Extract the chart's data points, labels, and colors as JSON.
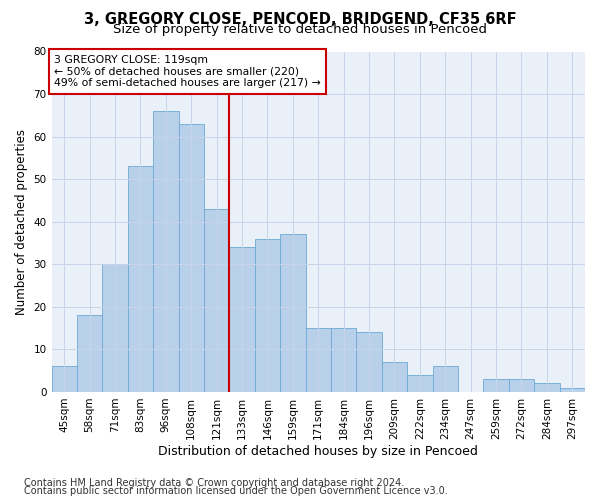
{
  "title_line1": "3, GREGORY CLOSE, PENCOED, BRIDGEND, CF35 6RF",
  "title_line2": "Size of property relative to detached houses in Pencoed",
  "xlabel": "Distribution of detached houses by size in Pencoed",
  "ylabel": "Number of detached properties",
  "footer_line1": "Contains HM Land Registry data © Crown copyright and database right 2024.",
  "footer_line2": "Contains public sector information licensed under the Open Government Licence v3.0.",
  "annotation_line1": "3 GREGORY CLOSE: 119sqm",
  "annotation_line2": "← 50% of detached houses are smaller (220)",
  "annotation_line3": "49% of semi-detached houses are larger (217) →",
  "bar_labels": [
    "45sqm",
    "58sqm",
    "71sqm",
    "83sqm",
    "96sqm",
    "108sqm",
    "121sqm",
    "133sqm",
    "146sqm",
    "159sqm",
    "171sqm",
    "184sqm",
    "196sqm",
    "209sqm",
    "222sqm",
    "234sqm",
    "247sqm",
    "259sqm",
    "272sqm",
    "284sqm",
    "297sqm"
  ],
  "bar_values": [
    6,
    18,
    30,
    53,
    66,
    63,
    43,
    34,
    36,
    37,
    15,
    15,
    14,
    7,
    4,
    6,
    0,
    3,
    3,
    2,
    1
  ],
  "bar_color": "#b8d0ea",
  "bar_edge_color": "#6aaad4",
  "vline_x_index": 6,
  "vline_color": "#cc0000",
  "ylim": [
    0,
    80
  ],
  "yticks": [
    0,
    10,
    20,
    30,
    40,
    50,
    60,
    70,
    80
  ],
  "grid_color": "#c8d4e8",
  "bg_color": "#eaf0f8",
  "annotation_box_color": "#cc0000",
  "title_fontsize": 10.5,
  "subtitle_fontsize": 9.5,
  "axis_label_fontsize": 9,
  "tick_fontsize": 7.5,
  "footer_fontsize": 7,
  "ylabel_fontsize": 8.5
}
